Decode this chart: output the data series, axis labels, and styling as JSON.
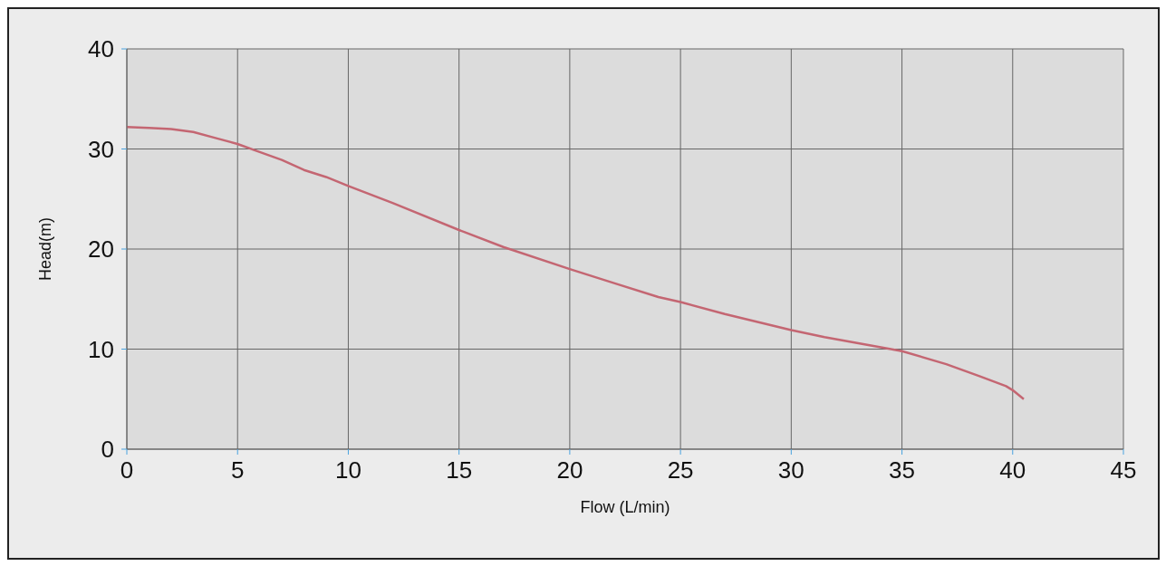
{
  "chart_data": {
    "type": "line",
    "xlabel": "Flow (L/min)",
    "ylabel": "Head(m)",
    "xlim": [
      0,
      45
    ],
    "xticks": [
      0,
      5,
      10,
      15,
      20,
      25,
      30,
      35,
      40,
      45
    ],
    "ylim": [
      0,
      40
    ],
    "yticks": [
      0,
      10,
      20,
      30,
      40
    ],
    "grid": true,
    "legend": false,
    "marker": "none",
    "line_style": "solid",
    "series": [
      {
        "color": "#c46672",
        "x": [
          0,
          1,
          2,
          3,
          4,
          5,
          6,
          7,
          8,
          9,
          10,
          12,
          15,
          17,
          20,
          22,
          24,
          25,
          27,
          30,
          31.5,
          34.5,
          35,
          37,
          38.5,
          39.7,
          40,
          40.5
        ],
        "values": [
          32.2,
          32.1,
          32.0,
          31.7,
          31.1,
          30.5,
          29.7,
          28.9,
          27.9,
          27.2,
          26.3,
          24.6,
          21.9,
          20.2,
          18.0,
          16.6,
          15.2,
          14.7,
          13.5,
          11.9,
          11.2,
          10.0,
          9.8,
          8.5,
          7.3,
          6.3,
          5.9,
          5.0
        ]
      }
    ]
  }
}
